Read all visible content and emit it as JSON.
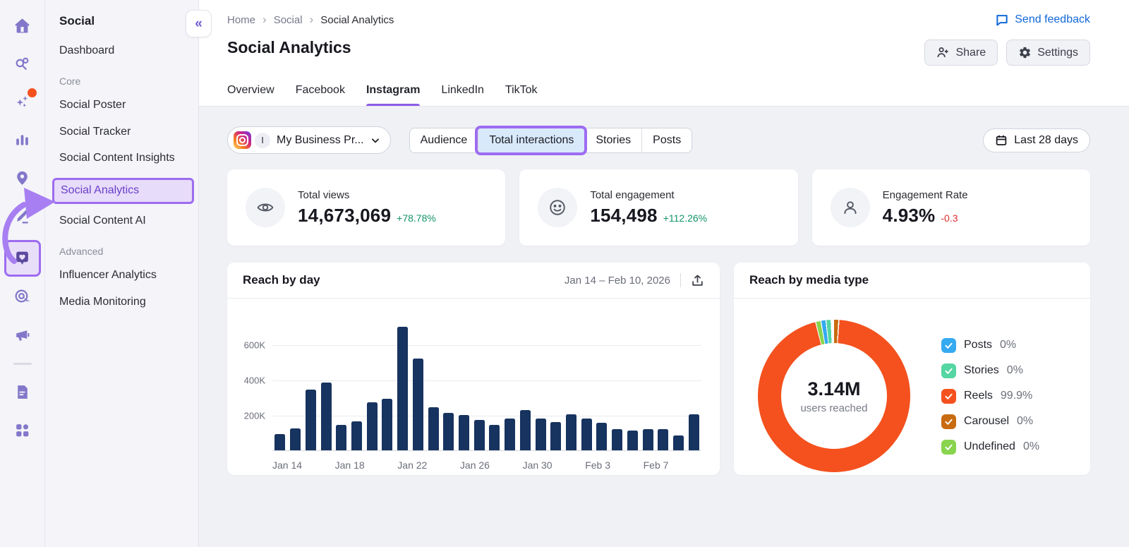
{
  "colors": {
    "accent_purple": "#8b5ce6",
    "annotation_purple": "#9d6cf0",
    "link_blue": "#1168d9",
    "positive_green": "#13936b",
    "negative_red": "#e02d2d",
    "bar_navy": "#17335f",
    "donut_orange": "#f4511e"
  },
  "rail": {
    "icons": [
      {
        "name": "home-icon"
      },
      {
        "name": "keyword-research-icon"
      },
      {
        "name": "ai-sparkles-icon",
        "badge": true
      },
      {
        "name": "analytics-bars-icon"
      },
      {
        "name": "local-pin-icon"
      },
      {
        "name": "content-pencil-icon"
      },
      {
        "name": "social-heart-bubble-icon",
        "highlighted": true
      },
      {
        "name": "traffic-target-icon"
      },
      {
        "name": "advertising-megaphone-icon"
      },
      {
        "name": "divider"
      },
      {
        "name": "reports-doc-icon"
      },
      {
        "name": "apps-grid-icon"
      }
    ]
  },
  "nav": {
    "title": "Social",
    "collapse_glyph": "«",
    "sections": [
      {
        "label": "",
        "items": [
          {
            "label": "Dashboard"
          }
        ]
      },
      {
        "label": "Core",
        "items": [
          {
            "label": "Social Poster"
          },
          {
            "label": "Social Tracker"
          },
          {
            "label": "Social Content Insights"
          },
          {
            "label": "Social Analytics",
            "active": true
          },
          {
            "label": "Social Content AI"
          }
        ]
      },
      {
        "label": "Advanced",
        "items": [
          {
            "label": "Influencer Analytics"
          },
          {
            "label": "Media Monitoring"
          }
        ]
      }
    ]
  },
  "header": {
    "breadcrumb": [
      "Home",
      "Social",
      "Social Analytics"
    ],
    "send_feedback_label": "Send feedback",
    "title": "Social Analytics",
    "share_label": "Share",
    "settings_label": "Settings",
    "tabs": [
      {
        "label": "Overview"
      },
      {
        "label": "Facebook"
      },
      {
        "label": "Instagram",
        "active": true
      },
      {
        "label": "LinkedIn"
      },
      {
        "label": "TikTok"
      }
    ]
  },
  "filters": {
    "account": {
      "avatar_initial": "I",
      "name": "My Business Pr..."
    },
    "segments": [
      {
        "label": "Audience"
      },
      {
        "label": "Total interactions",
        "selected": true,
        "annotated": true
      },
      {
        "label": "Stories"
      },
      {
        "label": "Posts"
      }
    ],
    "date_range_label": "Last 28 days"
  },
  "stats": [
    {
      "icon": "eye-icon",
      "label": "Total views",
      "value": "14,673,069",
      "delta": "+78.78%",
      "trend": "green"
    },
    {
      "icon": "smiley-icon",
      "label": "Total engagement",
      "value": "154,498",
      "delta": "+112.26%",
      "trend": "green"
    },
    {
      "icon": "person-icon",
      "label": "Engagement Rate",
      "value": "4.93%",
      "delta": "-0.3",
      "trend": "red"
    }
  ],
  "chart_data": [
    {
      "type": "bar",
      "title": "Reach by day",
      "date_range": "Jan 14 – Feb 10, 2026",
      "x": [
        "Jan 14",
        "Jan 15",
        "Jan 16",
        "Jan 17",
        "Jan 18",
        "Jan 19",
        "Jan 20",
        "Jan 21",
        "Jan 22",
        "Jan 23",
        "Jan 24",
        "Jan 25",
        "Jan 26",
        "Jan 27",
        "Jan 28",
        "Jan 29",
        "Jan 30",
        "Jan 31",
        "Feb 1",
        "Feb 2",
        "Feb 3",
        "Feb 4",
        "Feb 5",
        "Feb 6",
        "Feb 7",
        "Feb 8",
        "Feb 9",
        "Feb 10"
      ],
      "values_thousands": [
        90,
        125,
        345,
        385,
        145,
        165,
        270,
        290,
        700,
        520,
        245,
        210,
        200,
        170,
        145,
        180,
        230,
        180,
        160,
        205,
        180,
        155,
        120,
        110,
        120,
        118,
        85,
        205
      ],
      "x_tick_labels": [
        "Jan 14",
        "Jan 18",
        "Jan 22",
        "Jan 26",
        "Jan 30",
        "Feb 3",
        "Feb 7"
      ],
      "x_tick_every": 4,
      "yticks": [
        {
          "value": 200,
          "label": "200K"
        },
        {
          "value": 400,
          "label": "400K"
        },
        {
          "value": 600,
          "label": "600K"
        }
      ],
      "ylim": [
        0,
        720
      ],
      "grid": true,
      "bar_color": "#17335f"
    },
    {
      "type": "pie",
      "title": "Reach by media type",
      "center_value": "3.14M",
      "center_label": "users reached",
      "legend_position": "right",
      "segments": [
        {
          "name": "Posts",
          "pct_label": "0%",
          "value": 0.9,
          "color": "#35aaf0"
        },
        {
          "name": "Stories",
          "pct_label": "0%",
          "value": 0.9,
          "color": "#55d6a2"
        },
        {
          "name": "Reels",
          "pct_label": "99.9%",
          "value": 99.9,
          "color": "#f4511e"
        },
        {
          "name": "Carousel",
          "pct_label": "0%",
          "value": 0.9,
          "color": "#c96b10"
        },
        {
          "name": "Undefined",
          "pct_label": "0%",
          "value": 0.9,
          "color": "#88d44e"
        }
      ]
    }
  ]
}
